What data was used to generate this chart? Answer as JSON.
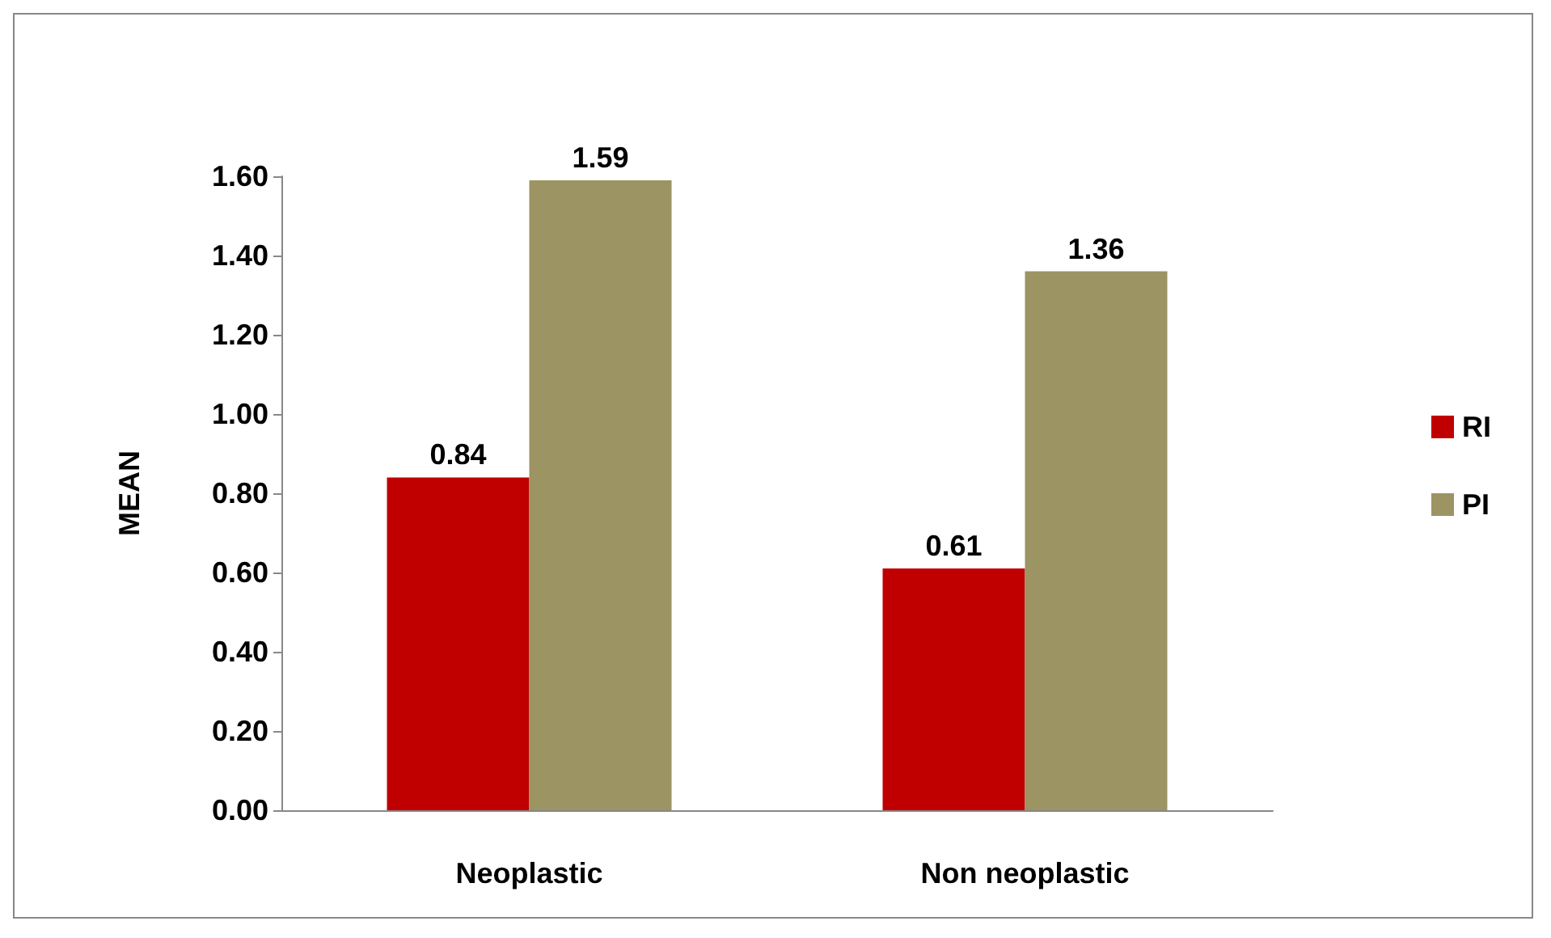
{
  "chart_data": {
    "type": "bar",
    "ylabel": "MEAN",
    "categories": [
      "Neoplastic",
      "Non neoplastic"
    ],
    "series": [
      {
        "name": "RI",
        "color": "#c00000",
        "values": [
          0.84,
          0.61
        ]
      },
      {
        "name": "PI",
        "color": "#9c9462",
        "values": [
          1.59,
          1.36
        ]
      }
    ],
    "ylim": [
      0,
      1.6
    ],
    "yticks": [
      {
        "value": 0,
        "label": "0.00"
      },
      {
        "value": 0.2,
        "label": "0.20"
      },
      {
        "value": 0.4,
        "label": "0.40"
      },
      {
        "value": 0.6,
        "label": "0.60"
      },
      {
        "value": 0.8,
        "label": "0.80"
      },
      {
        "value": 1,
        "label": "1.00"
      },
      {
        "value": 1.2,
        "label": "1.20"
      },
      {
        "value": 1.4,
        "label": "1.40"
      },
      {
        "value": 1.6,
        "label": "1.60"
      }
    ],
    "data_labels": true,
    "legend": "right",
    "grid": false
  }
}
